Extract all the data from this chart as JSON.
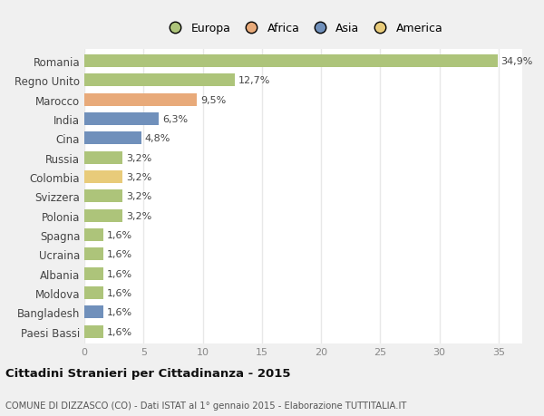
{
  "countries": [
    "Paesi Bassi",
    "Bangladesh",
    "Moldova",
    "Albania",
    "Ucraina",
    "Spagna",
    "Polonia",
    "Svizzera",
    "Colombia",
    "Russia",
    "Cina",
    "India",
    "Marocco",
    "Regno Unito",
    "Romania"
  ],
  "values": [
    1.6,
    1.6,
    1.6,
    1.6,
    1.6,
    1.6,
    3.2,
    3.2,
    3.2,
    3.2,
    4.8,
    6.3,
    9.5,
    12.7,
    34.9
  ],
  "colors": [
    "#adc47a",
    "#7090bb",
    "#adc47a",
    "#adc47a",
    "#adc47a",
    "#adc47a",
    "#adc47a",
    "#adc47a",
    "#e8cb7a",
    "#adc47a",
    "#7090bb",
    "#7090bb",
    "#e8aa7a",
    "#adc47a",
    "#adc47a"
  ],
  "labels": [
    "1,6%",
    "1,6%",
    "1,6%",
    "1,6%",
    "1,6%",
    "1,6%",
    "3,2%",
    "3,2%",
    "3,2%",
    "3,2%",
    "4,8%",
    "6,3%",
    "9,5%",
    "12,7%",
    "34,9%"
  ],
  "legend_labels": [
    "Europa",
    "Africa",
    "Asia",
    "America"
  ],
  "legend_colors": [
    "#adc47a",
    "#e8aa7a",
    "#7090bb",
    "#e8cb7a"
  ],
  "title": "Cittadini Stranieri per Cittadinanza - 2015",
  "subtitle": "COMUNE DI DIZZASCO (CO) - Dati ISTAT al 1° gennaio 2015 - Elaborazione TUTTITALIA.IT",
  "xlim": [
    0,
    37
  ],
  "xticks": [
    0,
    5,
    10,
    15,
    20,
    25,
    30,
    35
  ],
  "bg_color": "#f0f0f0",
  "plot_bg_color": "#ffffff",
  "grid_color": "#e8e8e8",
  "text_color": "#444444",
  "tick_color": "#888888"
}
